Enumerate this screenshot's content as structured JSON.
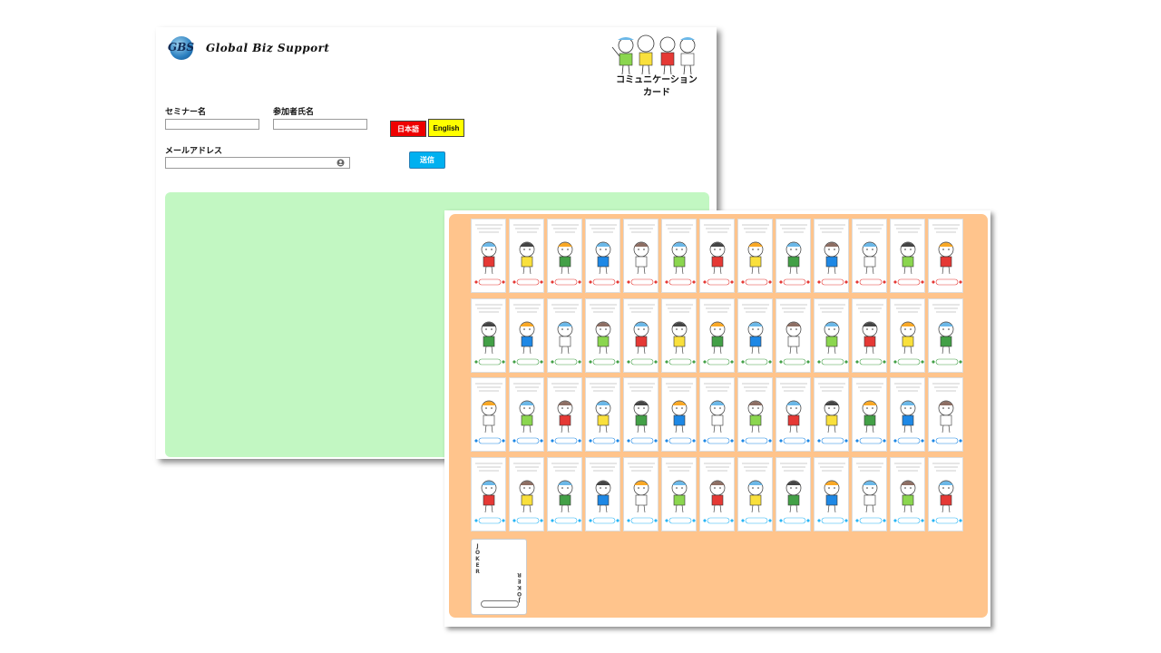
{
  "brand": {
    "logo_mark": "GBS",
    "name": "Global Biz Support"
  },
  "header": {
    "title_line1": "コミュニケーション",
    "title_line2": "カード"
  },
  "form": {
    "seminar_label": "セミナー名",
    "seminar_value": "",
    "participant_label": "参加者氏名",
    "participant_value": "",
    "email_label": "メールアドレス",
    "email_value": "",
    "lang_ja_label": "日本語",
    "lang_en_label": "English",
    "submit_label": "送信"
  },
  "result_panel": {
    "color": "#c2f7c2"
  },
  "card_sheet": {
    "background": "#ffc48c",
    "row_suit_colors": [
      "#e53935",
      "#43a047",
      "#1e88e5",
      "#29b6f6"
    ],
    "joker_label": "JOKER"
  },
  "colors": {
    "accent_red": "#ee0000",
    "accent_yellow": "#ffff00",
    "accent_blue": "#00b0f0"
  }
}
